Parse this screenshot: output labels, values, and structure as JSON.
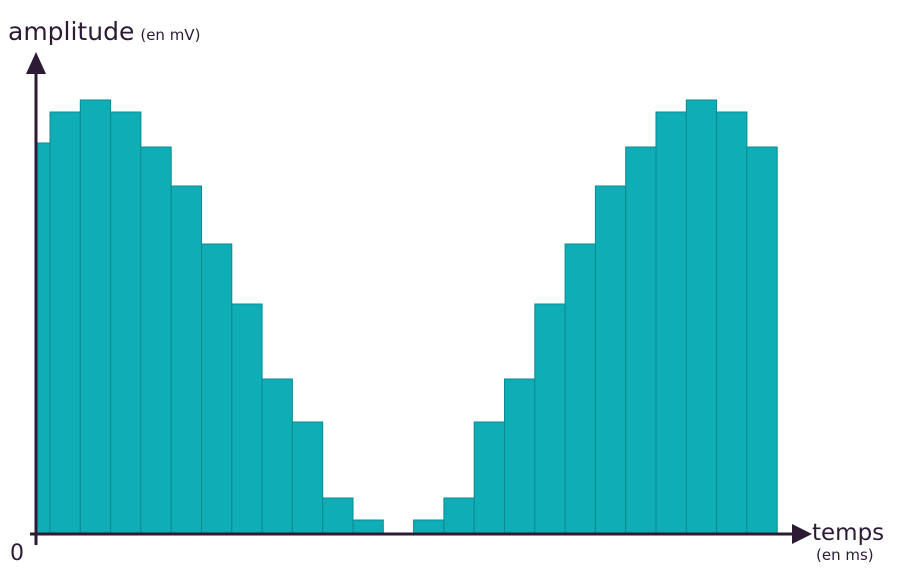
{
  "chart_data": {
    "type": "bar",
    "y_label": "amplitude",
    "y_unit": "(en mV)",
    "x_label": "temps",
    "x_unit": "(en ms)",
    "origin_label": "0",
    "categories": [
      null,
      null,
      null,
      null,
      null,
      null,
      null,
      null,
      null,
      null,
      null,
      null,
      null,
      null,
      null,
      null,
      null,
      null,
      null,
      null,
      null,
      null,
      null,
      null,
      null
    ],
    "values": [
      391,
      422,
      434,
      422,
      387,
      348,
      290,
      230,
      155,
      112,
      36,
      14,
      0,
      14,
      36,
      112,
      155,
      230,
      290,
      348,
      387,
      422,
      434,
      422,
      387
    ],
    "color": "#0fadb5",
    "edge_color": "#0b8a91",
    "axis_color": "#2d1b36",
    "ylim": [
      0,
      482
    ]
  }
}
